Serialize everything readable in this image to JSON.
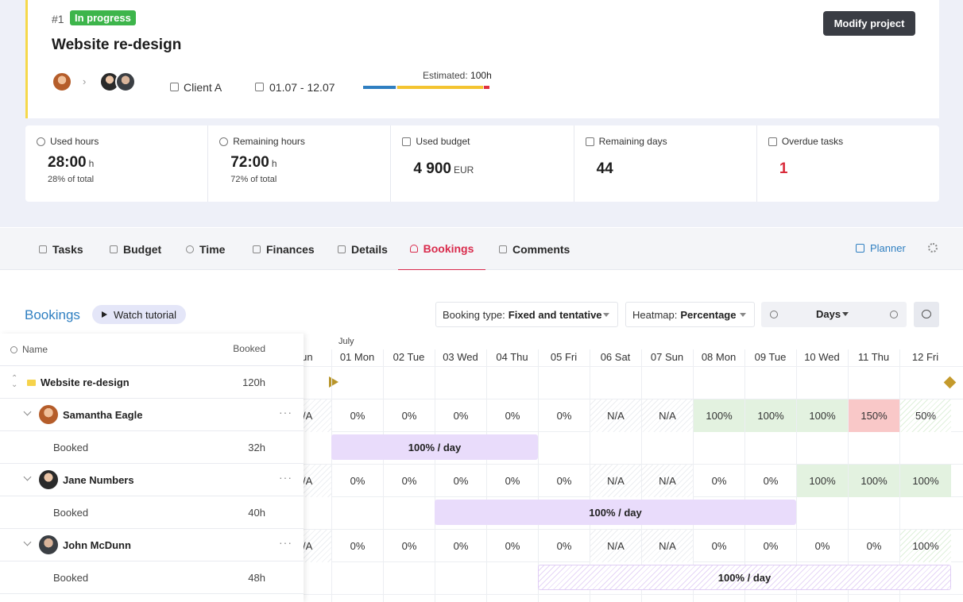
{
  "project": {
    "number": "#1",
    "status": "In progress",
    "title": "Website re-design",
    "modify_label": "Modify project",
    "client": "Client A",
    "dates": "01.07 - 12.07",
    "estimated_label": "Estimated:",
    "estimated_value": "100h"
  },
  "stats": [
    {
      "label": "Used hours",
      "value": "28:00",
      "unit": "h",
      "sub": "28% of total"
    },
    {
      "label": "Remaining hours",
      "value": "72:00",
      "unit": "h",
      "sub": "72% of total"
    },
    {
      "label": "Used budget",
      "value": "4 900",
      "unit": "EUR",
      "sub": ""
    },
    {
      "label": "Remaining days",
      "value": "44",
      "unit": "",
      "sub": ""
    },
    {
      "label": "Overdue tasks",
      "value": "1",
      "unit": "",
      "sub": ""
    }
  ],
  "tabs": [
    {
      "label": "Tasks",
      "active": false
    },
    {
      "label": "Budget",
      "active": false
    },
    {
      "label": "Time",
      "active": false
    },
    {
      "label": "Finances",
      "active": false
    },
    {
      "label": "Details",
      "active": false
    },
    {
      "label": "Bookings",
      "active": true
    },
    {
      "label": "Comments",
      "active": false
    }
  ],
  "planner_label": "Planner",
  "bookings": {
    "title": "Bookings",
    "watch_label": "Watch tutorial",
    "booking_type_label": "Booking type:",
    "booking_type_value": "Fixed and tentative",
    "heatmap_label": "Heatmap:",
    "heatmap_value": "Percentage",
    "zoom_value": "Days"
  },
  "table": {
    "name_header": "Name",
    "booked_header": "Booked",
    "month": "July",
    "days": [
      "Sun",
      "01 Mon",
      "02 Tue",
      "03 Wed",
      "04 Thu",
      "05 Fri",
      "06 Sat",
      "07 Sun",
      "08 Mon",
      "09 Tue",
      "10 Wed",
      "11 Thu",
      "12 Fri"
    ],
    "project_row": {
      "name": "Website re-design",
      "hours": "120h"
    },
    "people": [
      {
        "name": "Samantha Eagle",
        "booked_label": "Booked",
        "booked_hours": "32h",
        "cells": [
          "N/A",
          "0%",
          "0%",
          "0%",
          "0%",
          "0%",
          "N/A",
          "N/A",
          "100%",
          "100%",
          "100%",
          "150%",
          "50%"
        ],
        "bar_label": "100% / day"
      },
      {
        "name": "Jane Numbers",
        "booked_label": "Booked",
        "booked_hours": "40h",
        "cells": [
          "N/A",
          "0%",
          "0%",
          "0%",
          "0%",
          "0%",
          "N/A",
          "N/A",
          "0%",
          "0%",
          "100%",
          "100%",
          "100%"
        ],
        "bar_label": "100% / day"
      },
      {
        "name": "John McDunn",
        "booked_label": "Booked",
        "booked_hours": "48h",
        "cells": [
          "N/A",
          "0%",
          "0%",
          "0%",
          "0%",
          "0%",
          "N/A",
          "N/A",
          "0%",
          "0%",
          "0%",
          "0%",
          "100%"
        ],
        "bar_label": "100% / day"
      }
    ]
  },
  "colors": {
    "accent_blue": "#2f7fc1",
    "active_tab": "#d92b4c",
    "status_green": "#3db54b",
    "overdue_red": "#d92b3a",
    "booking_purple": "#e9dcfb"
  }
}
